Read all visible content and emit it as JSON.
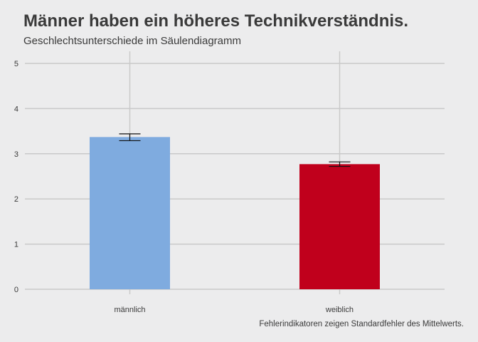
{
  "chart_data": {
    "type": "bar",
    "title": "Männer haben ein höheres Technikverständnis.",
    "subtitle": "Geschlechtsunterschiede im Säulendiagramm",
    "caption": "Fehlerindikatoren zeigen Standardfehler des Mittelwerts.",
    "xlabel": "",
    "ylabel": "",
    "categories": [
      "männlich",
      "weiblich"
    ],
    "values": [
      3.37,
      2.77
    ],
    "error_low": [
      3.29,
      2.72
    ],
    "error_high": [
      3.44,
      2.82
    ],
    "colors": [
      "#7fabdf",
      "#c0001c"
    ],
    "ylim": [
      0,
      5.3
    ],
    "yticks": [
      "0",
      "1",
      "2",
      "3",
      "4",
      "5"
    ],
    "grid": true,
    "legend": "none"
  }
}
